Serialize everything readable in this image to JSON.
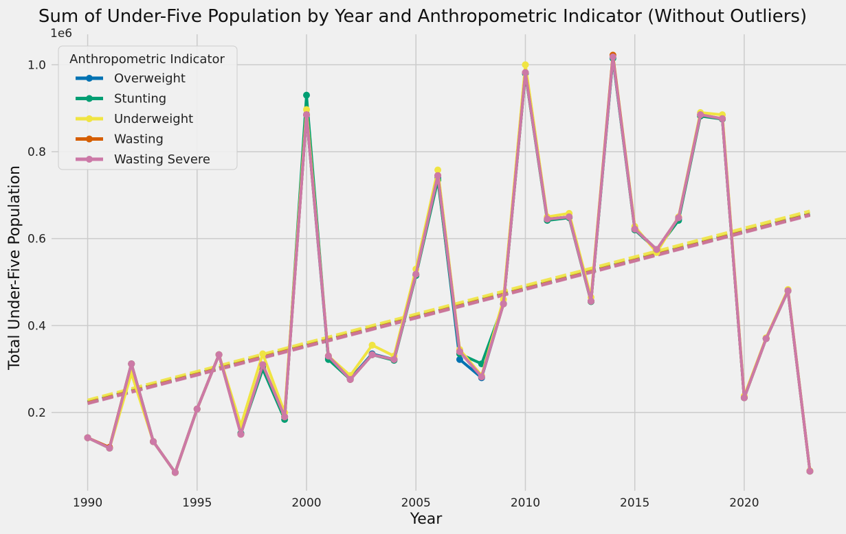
{
  "chart_data": {
    "type": "line",
    "title": "Sum of Under-Five Population by Year and Anthropometric Indicator (Without Outliers)",
    "xlabel": "Year",
    "ylabel": "Total Under-Five Population",
    "y_scale_label": "1e6",
    "xlim": [
      1988.35,
      2024.65
    ],
    "ylim": [
      0.02,
      1.07
    ],
    "x_ticks": [
      1990,
      1995,
      2000,
      2005,
      2010,
      2015,
      2020
    ],
    "y_ticks": [
      0.2,
      0.4,
      0.6,
      0.8,
      1.0
    ],
    "x_tick_labels": [
      "1990",
      "1995",
      "2000",
      "2005",
      "2010",
      "2015",
      "2020"
    ],
    "y_tick_labels": [
      "0.2",
      "0.4",
      "0.6",
      "0.8",
      "1.0"
    ],
    "grid": true,
    "legend_title": "Anthropometric Indicator",
    "legend_position": "top-left",
    "x": [
      1990,
      1991,
      1992,
      1993,
      1994,
      1995,
      1996,
      1997,
      1998,
      1999,
      2000,
      2001,
      2002,
      2003,
      2004,
      2005,
      2006,
      2007,
      2008,
      2009,
      2010,
      2011,
      2012,
      2013,
      2014,
      2015,
      2016,
      2017,
      2018,
      2019,
      2020,
      2021,
      2022,
      2023
    ],
    "series": [
      {
        "name": "Overweight",
        "color": "#0072b2",
        "values": [
          0.142,
          0.118,
          0.312,
          0.133,
          0.062,
          0.208,
          0.333,
          0.152,
          0.307,
          0.19,
          0.885,
          0.325,
          0.278,
          0.335,
          0.322,
          0.518,
          0.74,
          0.322,
          0.28,
          0.45,
          0.98,
          0.645,
          0.65,
          0.456,
          1.015,
          0.622,
          0.575,
          0.645,
          0.885,
          0.875,
          0.234,
          0.37,
          0.48,
          0.065
        ],
        "trend": [
          0.222,
          0.655
        ]
      },
      {
        "name": "Stunting",
        "color": "#009e73",
        "values": [
          0.142,
          0.118,
          0.312,
          0.133,
          0.062,
          0.208,
          0.333,
          0.152,
          0.3,
          0.184,
          0.93,
          0.322,
          0.276,
          0.333,
          0.32,
          0.515,
          0.735,
          0.335,
          0.312,
          0.45,
          0.98,
          0.642,
          0.648,
          0.455,
          1.015,
          0.62,
          0.574,
          0.642,
          0.882,
          0.875,
          0.234,
          0.37,
          0.48,
          0.065
        ],
        "trend": [
          0.224,
          0.657
        ]
      },
      {
        "name": "Underweight",
        "color": "#f0e442",
        "values": [
          0.142,
          0.118,
          0.29,
          0.133,
          0.062,
          0.208,
          0.333,
          0.17,
          0.335,
          0.2,
          0.897,
          0.33,
          0.285,
          0.355,
          0.33,
          0.53,
          0.758,
          0.345,
          0.285,
          0.46,
          1.0,
          0.65,
          0.658,
          0.465,
          1.022,
          0.628,
          0.568,
          0.65,
          0.89,
          0.885,
          0.238,
          0.372,
          0.483,
          0.066
        ],
        "trend": [
          0.228,
          0.663
        ]
      },
      {
        "name": "Wasting",
        "color": "#d55e00",
        "values": [
          0.142,
          0.12,
          0.312,
          0.133,
          0.062,
          0.208,
          0.333,
          0.15,
          0.31,
          0.19,
          0.885,
          0.33,
          0.276,
          0.333,
          0.322,
          0.518,
          0.745,
          0.34,
          0.282,
          0.45,
          0.982,
          0.645,
          0.65,
          0.456,
          1.022,
          0.622,
          0.575,
          0.648,
          0.885,
          0.876,
          0.234,
          0.37,
          0.48,
          0.065
        ],
        "trend": [
          0.222,
          0.655
        ]
      },
      {
        "name": "Wasting Severe",
        "color": "#cc79a7",
        "values": [
          0.142,
          0.118,
          0.312,
          0.133,
          0.062,
          0.208,
          0.333,
          0.15,
          0.31,
          0.19,
          0.885,
          0.33,
          0.276,
          0.333,
          0.322,
          0.518,
          0.745,
          0.34,
          0.282,
          0.45,
          0.982,
          0.645,
          0.65,
          0.456,
          1.018,
          0.622,
          0.575,
          0.648,
          0.885,
          0.876,
          0.234,
          0.37,
          0.48,
          0.065
        ],
        "trend": [
          0.221,
          0.654
        ]
      }
    ]
  }
}
